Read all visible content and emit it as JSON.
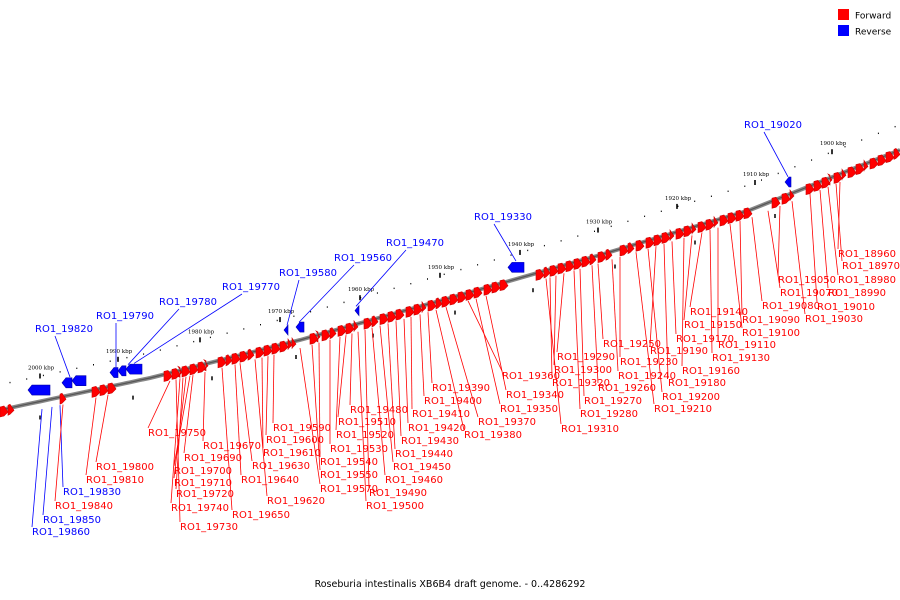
{
  "caption": "Roseburia intestinalis XB6B4 draft genome. - 0..4286292",
  "legend": {
    "forward_label": "Forward",
    "reverse_label": "Reverse",
    "forward_color": "#ff0000",
    "reverse_color": "#0000ff"
  },
  "scale_labels": [
    "2000 kbp",
    "1990 kbp",
    "1980 kbp",
    "1970 kbp",
    "1960 kbp",
    "1950 kbp",
    "1940 kbp",
    "1930 kbp",
    "1920 kbp",
    "1910 kbp",
    "1900 kbp"
  ],
  "reverse_genes": [
    "RO1_19860",
    "RO1_19850",
    "RO1_19830",
    "RO1_19820",
    "RO1_19790",
    "RO1_19780",
    "RO1_19770",
    "RO1_19580",
    "RO1_19560",
    "RO1_19470",
    "RO1_19330",
    "RO1_19020"
  ],
  "forward_genes": [
    "RO1_19840",
    "RO1_19810",
    "RO1_19800",
    "RO1_19750",
    "RO1_19730",
    "RO1_19740",
    "RO1_19720",
    "RO1_19710",
    "RO1_19700",
    "RO1_19690",
    "RO1_19670",
    "RO1_19650",
    "RO1_19640",
    "RO1_19630",
    "RO1_19620",
    "RO1_19610",
    "RO1_19600",
    "RO1_19590",
    "RO1_19570",
    "RO1_19550",
    "RO1_19540",
    "RO1_19530",
    "RO1_19520",
    "RO1_19510",
    "RO1_19480",
    "RO1_19500",
    "RO1_19490",
    "RO1_19460",
    "RO1_19450",
    "RO1_19440",
    "RO1_19430",
    "RO1_19420",
    "RO1_19410",
    "RO1_19400",
    "RO1_19390",
    "RO1_19380",
    "RO1_19370",
    "RO1_19360",
    "RO1_19350",
    "RO1_19340",
    "RO1_19310",
    "RO1_19320",
    "RO1_19300",
    "RO1_19290",
    "RO1_19280",
    "RO1_19270",
    "RO1_19260",
    "RO1_19250",
    "RO1_19240",
    "RO1_19230",
    "RO1_19210",
    "RO1_19200",
    "RO1_19190",
    "RO1_19180",
    "RO1_19170",
    "RO1_19160",
    "RO1_19150",
    "RO1_19140",
    "RO1_19130",
    "RO1_19110",
    "RO1_19100",
    "RO1_19090",
    "RO1_19080",
    "RO1_19070",
    "RO1_19050",
    "RO1_19030",
    "RO1_19010",
    "RO1_18990",
    "RO1_18980",
    "RO1_18970",
    "RO1_18960"
  ]
}
